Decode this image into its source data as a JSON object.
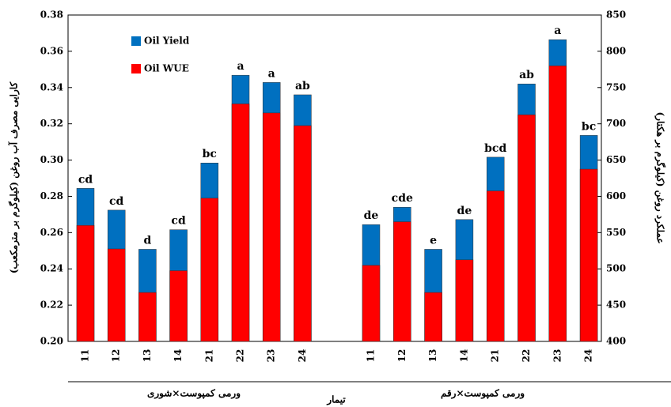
{
  "chart_data": {
    "type": "bar",
    "overlap": true,
    "ylabel": "کارایی مصرف آب روغن (کیلوگرم بر مترمکعب)",
    "y2label": "عملکرد روغن (کیلوگرم بر هکتار)",
    "xlabel": "تیمار",
    "groups": [
      "ورمی کمپوست×شوری",
      "ورمی کمپوست×رقم"
    ],
    "categories": [
      "11",
      "12",
      "13",
      "14",
      "21",
      "22",
      "23",
      "24",
      "11",
      "12",
      "13",
      "14",
      "21",
      "22",
      "23",
      "24"
    ],
    "series": [
      {
        "name": "Oil Yield",
        "color": "#0070c0",
        "axis": "y2",
        "values": [
          611,
          581,
          527,
          554,
          646,
          767,
          757,
          740,
          561,
          585,
          527,
          568,
          654,
          755,
          816,
          684
        ]
      },
      {
        "name": "Oil WUE",
        "color": "#ff0000",
        "axis": "y",
        "values": [
          0.264,
          0.251,
          0.227,
          0.239,
          0.279,
          0.331,
          0.326,
          0.319,
          0.242,
          0.266,
          0.227,
          0.245,
          0.283,
          0.325,
          0.352,
          0.295
        ]
      }
    ],
    "annotations": [
      "cd",
      "cd",
      "d",
      "cd",
      "bc",
      "a",
      "a",
      "ab",
      "de",
      "cde",
      "e",
      "de",
      "bcd",
      "ab",
      "a",
      "bc"
    ],
    "ylim": [
      0.2,
      0.38
    ],
    "yticks": [
      {
        "value": 0.2,
        "label": "0.20"
      },
      0.22,
      0.24,
      0.26,
      0.28,
      {
        "value": 0.3,
        "label": "0.30"
      },
      0.32,
      0.34,
      0.36,
      0.38
    ],
    "y2lim": [
      400,
      850
    ],
    "y2ticks": [
      400,
      450,
      500,
      550,
      600,
      650,
      700,
      750,
      800,
      850
    ],
    "legend": "upper left"
  }
}
